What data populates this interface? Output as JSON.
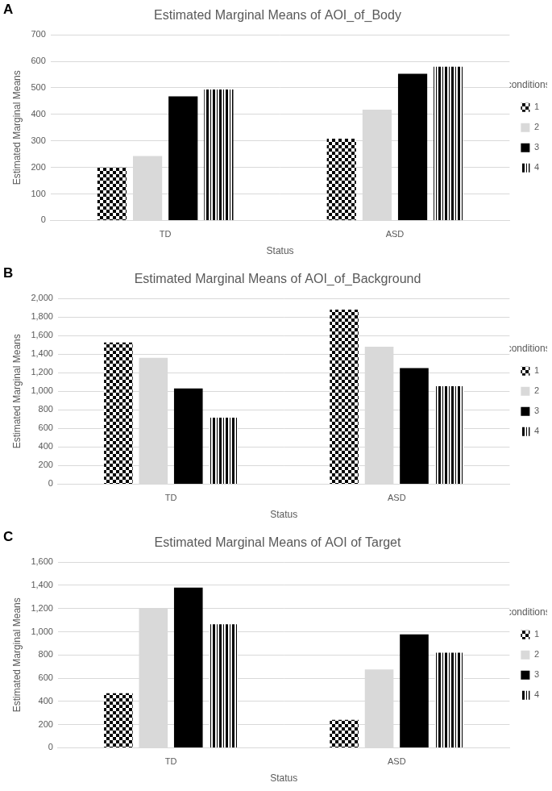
{
  "chart_data": [
    {
      "type": "bar",
      "panel": "A",
      "title": "Estimated Marginal Means of AOI_of_Body",
      "x_label": "Status",
      "y_label": "Estimated Marginal Means",
      "legend_title": "conditions",
      "categories": [
        "TD",
        "ASD"
      ],
      "series": [
        {
          "name": "1",
          "color": "#000000",
          "values": [
            200,
            308
          ]
        },
        {
          "name": "2",
          "color": "#d9d9d9",
          "values": [
            243,
            418
          ]
        },
        {
          "name": "3",
          "color": "#000000",
          "values": [
            468,
            553
          ]
        },
        {
          "name": "4",
          "color": "#000000",
          "values": [
            494,
            580
          ]
        }
      ],
      "ylim": [
        0,
        700
      ],
      "yticks": [
        0,
        100,
        200,
        300,
        400,
        500,
        600,
        700
      ],
      "grid": true,
      "legend": "right"
    },
    {
      "type": "bar",
      "panel": "B",
      "title": "Estimated Marginal Means of AOI_of_Background",
      "x_label": "Status",
      "y_label": "Estimated Marginal Means",
      "legend_title": "conditions",
      "categories": [
        "TD",
        "ASD"
      ],
      "series": [
        {
          "name": "1",
          "color": "#000000",
          "values": [
            1525,
            1880
          ]
        },
        {
          "name": "2",
          "color": "#d9d9d9",
          "values": [
            1360,
            1480
          ]
        },
        {
          "name": "3",
          "color": "#000000",
          "values": [
            1030,
            1250
          ]
        },
        {
          "name": "4",
          "color": "#000000",
          "values": [
            715,
            1055
          ]
        }
      ],
      "ylim": [
        0,
        2000
      ],
      "yticks": [
        0,
        200,
        400,
        600,
        800,
        1000,
        1200,
        1400,
        1600,
        1800,
        2000
      ],
      "grid": true,
      "legend": "right"
    },
    {
      "type": "bar",
      "panel": "C",
      "title": "Estimated Marginal Means of AOI of Target",
      "x_label": "Status",
      "y_label": "Estimated Marginal Means",
      "legend_title": "conditions",
      "categories": [
        "TD",
        "ASD"
      ],
      "series": [
        {
          "name": "1",
          "color": "#000000",
          "values": [
            470,
            240
          ]
        },
        {
          "name": "2",
          "color": "#d9d9d9",
          "values": [
            1200,
            675
          ]
        },
        {
          "name": "3",
          "color": "#000000",
          "values": [
            1380,
            978
          ]
        },
        {
          "name": "4",
          "color": "#000000",
          "values": [
            1065,
            820
          ]
        }
      ],
      "ylim": [
        0,
        1600
      ],
      "yticks": [
        0,
        200,
        400,
        600,
        800,
        1000,
        1200,
        1400,
        1600
      ],
      "grid": true,
      "legend": "right"
    }
  ]
}
